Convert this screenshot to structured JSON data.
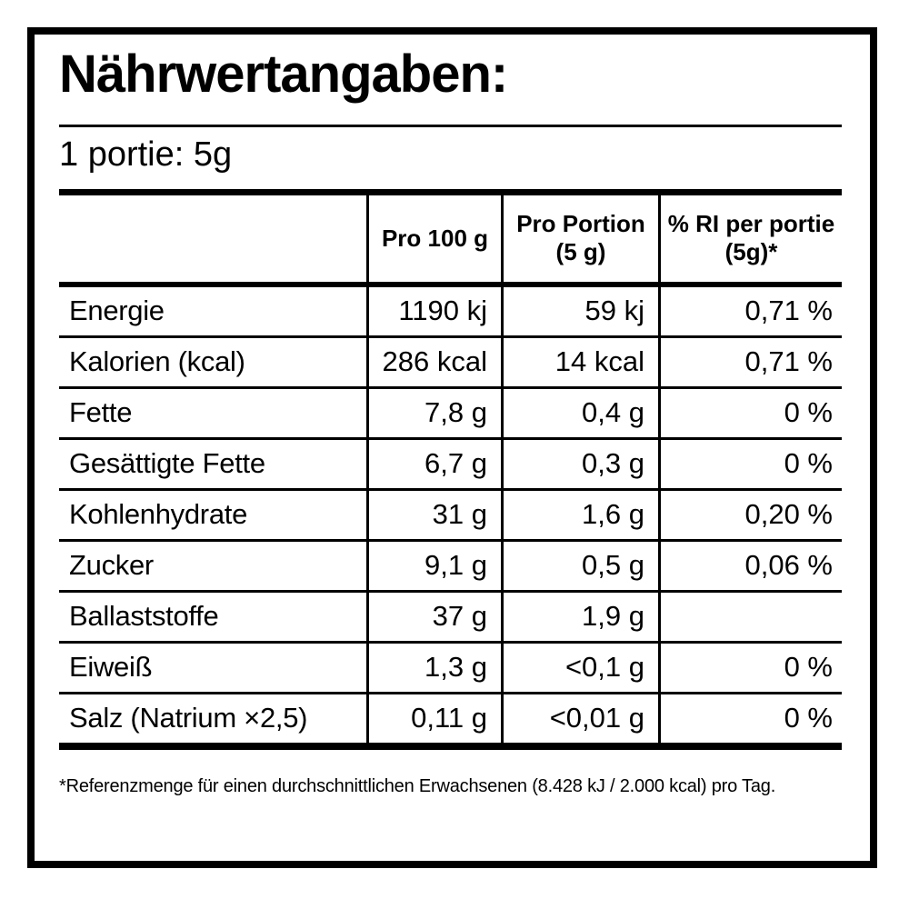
{
  "colors": {
    "background": "#ffffff",
    "text": "#000000",
    "rule": "#000000"
  },
  "label": {
    "title": "Nährwertangaben:",
    "serving_line": "1 portie: 5g",
    "footnote": "*Referenzmenge für einen durchschnittlichen Erwachsenen (8.428 kJ / 2.000 kcal) pro Tag."
  },
  "table": {
    "columns": {
      "col1": "",
      "col2": "Pro 100 g",
      "col3": "Pro Portion (5 g)",
      "col4": "% RI per portie (5g)*"
    },
    "rows": [
      {
        "label": "Energie",
        "per100": "1190 kj",
        "portion": "59 kj",
        "ri": "0,71 %"
      },
      {
        "label": "Kalorien (kcal)",
        "per100": "286 kcal",
        "portion": "14 kcal",
        "ri": "0,71 %"
      },
      {
        "label": "Fette",
        "per100": "7,8 g",
        "portion": "0,4 g",
        "ri": "0 %"
      },
      {
        "label": "Gesättigte Fette",
        "per100": "6,7 g",
        "portion": "0,3 g",
        "ri": "0 %"
      },
      {
        "label": "Kohlenhydrate",
        "per100": "31 g",
        "portion": "1,6 g",
        "ri": "0,20 %"
      },
      {
        "label": "Zucker",
        "per100": "9,1 g",
        "portion": "0,5 g",
        "ri": "0,06 %"
      },
      {
        "label": "Ballaststoffe",
        "per100": "37 g",
        "portion": "1,9 g",
        "ri": ""
      },
      {
        "label": "Eiweiß",
        "per100": "1,3 g",
        "portion": "<0,1 g",
        "ri": "0 %"
      },
      {
        "label": "Salz (Natrium ×2,5)",
        "per100": "0,11 g",
        "portion": "<0,01 g",
        "ri": "0 %"
      }
    ]
  }
}
